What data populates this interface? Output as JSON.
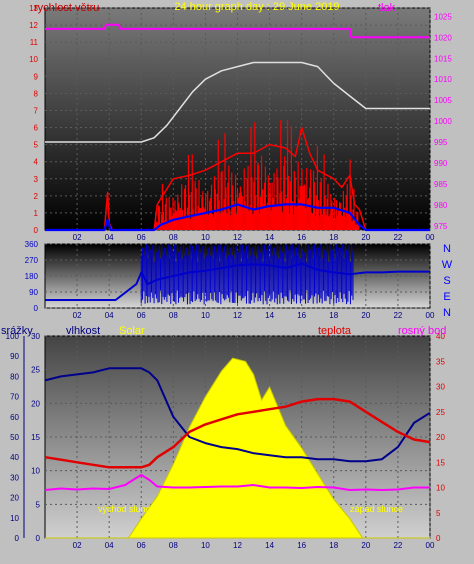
{
  "colors": {
    "background": "#c0c0c0",
    "wind_speed": "#ff0000",
    "gust": "#0000ff",
    "pressure": "#ff00ff",
    "pressure_alt": "#e0e0e0",
    "direction": "#0000cc",
    "humidity": "#00008b",
    "solar": "#ffff00",
    "temperature": "#e00000",
    "dew_point": "#ff00ff",
    "title": "#ffff00"
  },
  "chart_data": [
    {
      "type": "line",
      "title": "24 hour graph day : 29 June 2019",
      "left_label": "rychlost větru",
      "right_label": "tlak",
      "x_ticks": [
        "02",
        "04",
        "06",
        "08",
        "10",
        "12",
        "14",
        "16",
        "18",
        "20",
        "22",
        "00"
      ],
      "y_left_ticks": [
        "0",
        "1",
        "2",
        "3",
        "4",
        "5",
        "6",
        "7",
        "8",
        "9",
        "10",
        "11",
        "12",
        "13"
      ],
      "y_right_ticks": [
        "975",
        "980",
        "985",
        "990",
        "995",
        "1000",
        "1005",
        "1010",
        "1015",
        "1020",
        "1025"
      ],
      "ylim_left": [
        0,
        13
      ],
      "ylim_right": [
        974,
        1027
      ],
      "series": [
        {
          "key": "wind",
          "x": [
            0,
            3.7,
            3.9,
            4.0,
            4.2,
            6.8,
            7.0,
            8.0,
            9.0,
            10.0,
            11.0,
            12.0,
            13.0,
            14.0,
            15.0,
            15.6,
            16.0,
            16.5,
            17.0,
            18.0,
            18.5,
            19.0,
            19.3,
            19.6,
            20,
            24
          ],
          "y": [
            0,
            0,
            2.2,
            0.4,
            0,
            0,
            1.5,
            3.0,
            3.2,
            3.5,
            4.0,
            4.5,
            4.5,
            5.0,
            4.8,
            4.3,
            6.0,
            4.5,
            3.5,
            3.0,
            2.5,
            3.2,
            1.5,
            1.2,
            0,
            0
          ]
        },
        {
          "key": "gust",
          "x": [
            0,
            3.7,
            3.9,
            4.1,
            6.8,
            7.2,
            8,
            9,
            10,
            11,
            12,
            13,
            14,
            15,
            16,
            17,
            18,
            19,
            19.6,
            20,
            24
          ],
          "y": [
            0,
            0,
            0.6,
            0,
            0,
            0.3,
            0.6,
            0.8,
            1.0,
            1.2,
            1.5,
            1.2,
            1.4,
            1.5,
            1.5,
            1.3,
            1.3,
            1.0,
            0.3,
            0,
            0
          ]
        },
        {
          "key": "pressure",
          "x": [
            0,
            3.7,
            3.8,
            4.6,
            4.7,
            5.3,
            5.4,
            13.0,
            13.1,
            19.0,
            19.1,
            24
          ],
          "y": [
            1022,
            1022,
            1023,
            1023,
            1022,
            1022,
            1022,
            1022,
            1022,
            1022,
            1020,
            1020
          ]
        },
        {
          "key": "pressure_alt",
          "x": [
            0,
            3.0,
            5.0,
            6.0,
            6.8,
            7.6,
            8.4,
            9.2,
            10.0,
            11.0,
            12.0,
            13.0,
            14.0,
            15.0,
            16.0,
            17.0,
            17.5,
            18.0,
            19.0,
            20.0,
            21.0,
            22.0,
            23.0,
            23.9,
            24
          ],
          "y": [
            995,
            995,
            995,
            995,
            996,
            999,
            1003,
            1007,
            1010,
            1012,
            1013,
            1014,
            1014,
            1014,
            1014,
            1013,
            1011,
            1009,
            1006,
            1003,
            1003,
            1003,
            1003,
            1003,
            1003
          ]
        }
      ]
    },
    {
      "type": "line",
      "title": "",
      "x_ticks": [
        "02",
        "04",
        "06",
        "08",
        "10",
        "12",
        "14",
        "16",
        "18",
        "20",
        "22",
        "00"
      ],
      "y_ticks": [
        "0",
        "90",
        "180",
        "270",
        "360"
      ],
      "right_labels": [
        "N",
        "W",
        "S",
        "E",
        "N"
      ],
      "ylim": [
        0,
        360
      ],
      "series": [
        {
          "key": "direction",
          "x": [
            0,
            4.4,
            5.7,
            6.0,
            6.4,
            7.0,
            8.0,
            9.0,
            10,
            11,
            12,
            13,
            14,
            15,
            16,
            17,
            18,
            19,
            20,
            21,
            22,
            24
          ],
          "y": [
            45,
            45,
            135,
            200,
            135,
            160,
            180,
            200,
            210,
            225,
            240,
            245,
            240,
            225,
            250,
            215,
            200,
            190,
            200,
            200,
            205,
            205
          ]
        }
      ]
    },
    {
      "type": "area",
      "title": "",
      "top_labels": [
        "srážky",
        "vlhkost",
        "Solar",
        "teplota",
        "rosný bod"
      ],
      "x_ticks": [
        "02",
        "04",
        "06",
        "08",
        "10",
        "12",
        "14",
        "16",
        "18",
        "20",
        "22",
        "00"
      ],
      "y_left_outer_ticks": [
        "0",
        "10",
        "20",
        "30",
        "40",
        "50",
        "60",
        "70",
        "80",
        "90",
        "100"
      ],
      "y_left_inner_ticks": [
        "0",
        "5",
        "10",
        "15",
        "20",
        "25",
        "30"
      ],
      "y_right_ticks": [
        "0",
        "5",
        "10",
        "15",
        "20",
        "25",
        "30",
        "35",
        "40"
      ],
      "ylim_outer": [
        0,
        100
      ],
      "ylim_inner": [
        0,
        30
      ],
      "ylim_right": [
        0,
        40
      ],
      "annotations": [
        "východ slunce",
        "západ slunce"
      ],
      "series": [
        {
          "key": "humidity",
          "x": [
            0,
            1.0,
            2.0,
            3.0,
            4.0,
            5.0,
            5.5,
            6.0,
            6.5,
            7.0,
            8.0,
            9.0,
            10.0,
            11.0,
            12.0,
            13.0,
            14.0,
            15.0,
            16.0,
            17.0,
            18.0,
            19.0,
            20.0,
            21.0,
            22.0,
            23.0,
            24
          ],
          "y": [
            78,
            80,
            81,
            82,
            84,
            84,
            84,
            84,
            82,
            78,
            60,
            50,
            47,
            45,
            44,
            42,
            41,
            40,
            40,
            39,
            39,
            38,
            38,
            39,
            45,
            57,
            62
          ]
        },
        {
          "key": "solar",
          "x": [
            0,
            5.2,
            6.0,
            7.0,
            8.0,
            9.0,
            10.0,
            11.0,
            11.7,
            12.5,
            13.0,
            13.5,
            14.0,
            15.0,
            16.0,
            17.0,
            18.0,
            19.0,
            19.8,
            24
          ],
          "y": [
            0,
            0,
            60,
            130,
            230,
            345,
            440,
            520,
            560,
            550,
            510,
            430,
            470,
            350,
            280,
            200,
            120,
            60,
            0,
            0
          ]
        },
        {
          "key": "temperature",
          "x": [
            0,
            1.0,
            2.0,
            3.0,
            4.0,
            5.0,
            6.0,
            6.5,
            7.0,
            8.0,
            9.0,
            10.0,
            11.0,
            12.0,
            13.0,
            14.0,
            15.0,
            16.0,
            17.0,
            18.0,
            19.0,
            20.0,
            21.0,
            22.0,
            23.0,
            24
          ],
          "y": [
            16,
            15.5,
            15,
            14.5,
            14,
            14,
            14,
            14.5,
            16,
            18,
            21,
            22.5,
            23.5,
            24.5,
            25,
            25.5,
            26,
            27,
            27.5,
            27.5,
            27,
            25,
            23,
            21,
            19.5,
            19
          ]
        },
        {
          "key": "dew_point",
          "x": [
            0,
            1.0,
            2.0,
            3.0,
            4.0,
            5.0,
            5.5,
            6.0,
            6.5,
            7.0,
            8.0,
            9.0,
            10.0,
            11.0,
            12.0,
            13.0,
            14.0,
            15.0,
            16.0,
            17.0,
            18.0,
            19.0,
            20.0,
            21.0,
            22.0,
            23.0,
            24
          ],
          "y": [
            9.5,
            9.8,
            9.6,
            9.8,
            9.7,
            10.5,
            11.5,
            12.5,
            11.5,
            10.2,
            10,
            10,
            10.1,
            10.2,
            10.2,
            10.5,
            10,
            10,
            9.9,
            10.1,
            10,
            9.5,
            9.6,
            9.5,
            9.6,
            10,
            10
          ]
        }
      ]
    }
  ]
}
